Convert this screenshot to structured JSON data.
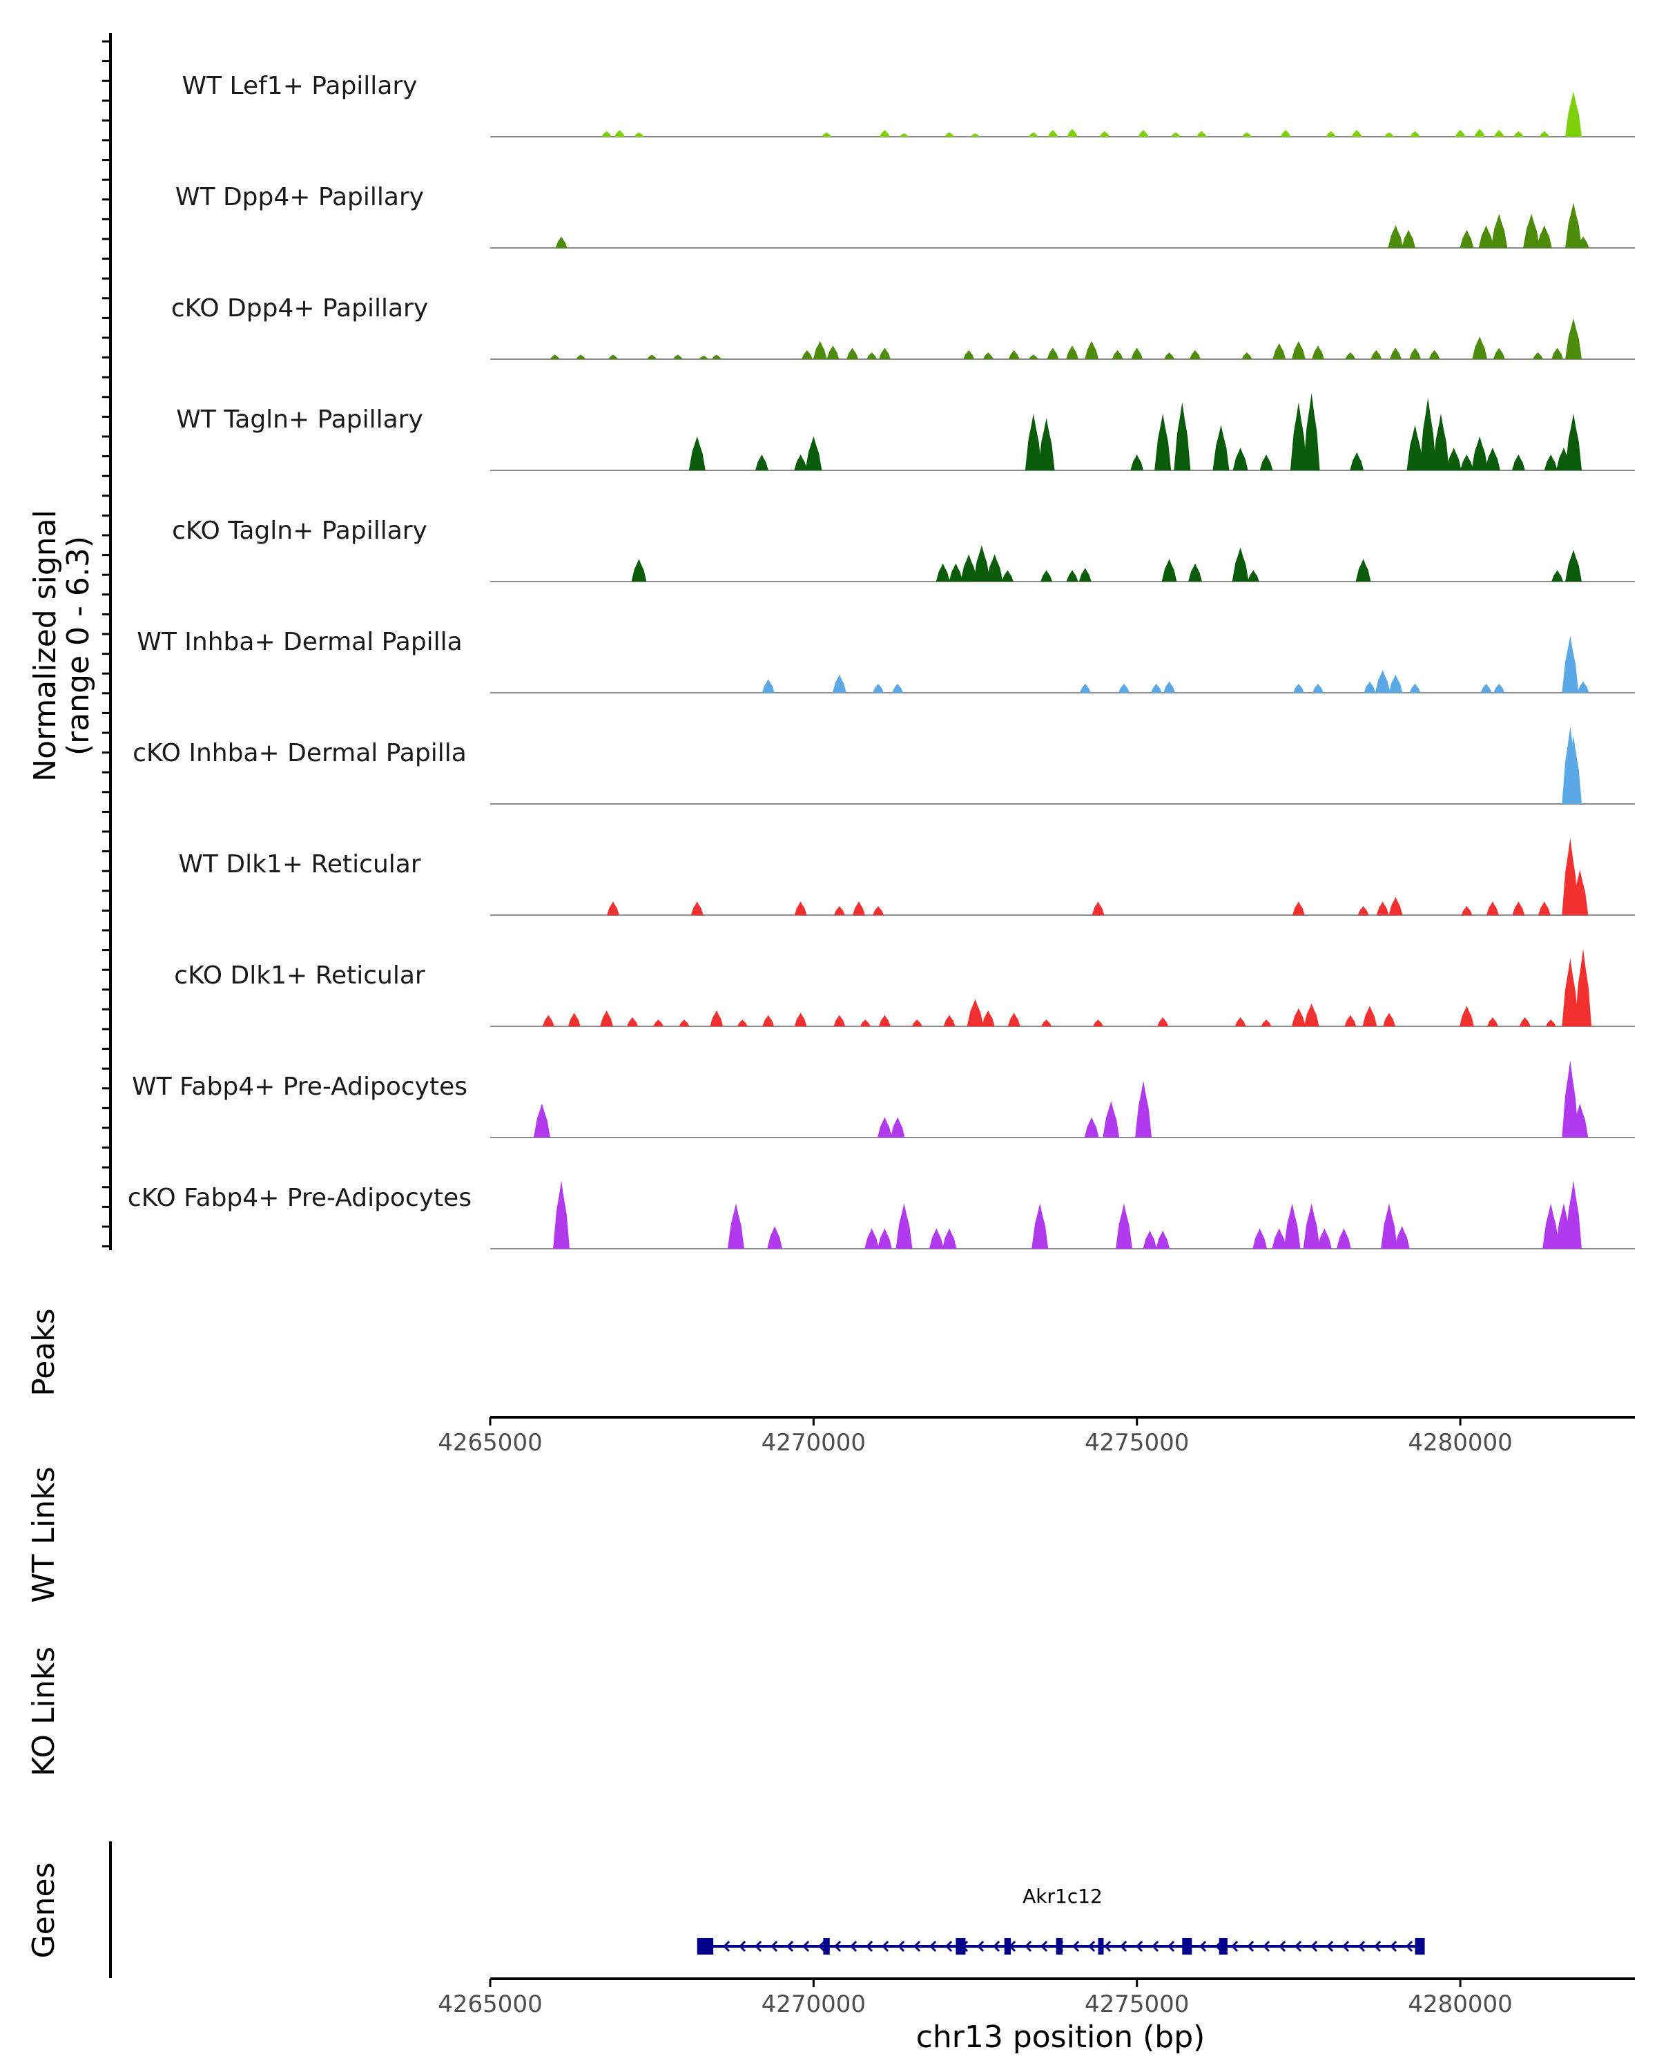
{
  "chart_data": {
    "type": "coverage",
    "region": {
      "chrom": "chr13",
      "start": 4265000,
      "end": 4282700
    },
    "coverage": {
      "ylabel_line1": "Normalized signal",
      "ylabel_line2": "(range 0 - 6.3)",
      "ylim": [
        0,
        6.3
      ],
      "tracks": [
        {
          "name": "WT Lef1+ Papillary",
          "color": "#7CD10A",
          "peaks": [
            [
              4266800,
              0.25
            ],
            [
              4267000,
              0.3
            ],
            [
              4267300,
              0.2
            ],
            [
              4270200,
              0.2
            ],
            [
              4271100,
              0.3
            ],
            [
              4271400,
              0.15
            ],
            [
              4272100,
              0.2
            ],
            [
              4272500,
              0.15
            ],
            [
              4273400,
              0.2
            ],
            [
              4273700,
              0.3
            ],
            [
              4274000,
              0.35
            ],
            [
              4274500,
              0.25
            ],
            [
              4275100,
              0.3
            ],
            [
              4275600,
              0.2
            ],
            [
              4276000,
              0.25
            ],
            [
              4276700,
              0.2
            ],
            [
              4277300,
              0.3
            ],
            [
              4278000,
              0.25
            ],
            [
              4278400,
              0.3
            ],
            [
              4278900,
              0.2
            ],
            [
              4279300,
              0.25
            ],
            [
              4280000,
              0.3
            ],
            [
              4280300,
              0.35
            ],
            [
              4280600,
              0.3
            ],
            [
              4280900,
              0.25
            ],
            [
              4281300,
              0.25
            ],
            [
              4281750,
              2.0
            ]
          ]
        },
        {
          "name": "WT Dpp4+ Papillary",
          "color": "#4C8C0A",
          "peaks": [
            [
              4266100,
              0.5
            ],
            [
              4279000,
              1.0
            ],
            [
              4279200,
              0.8
            ],
            [
              4280100,
              0.8
            ],
            [
              4280400,
              1.0
            ],
            [
              4280600,
              1.5
            ],
            [
              4281100,
              1.5
            ],
            [
              4281300,
              1.0
            ],
            [
              4281750,
              2.0
            ],
            [
              4281900,
              0.5
            ]
          ]
        },
        {
          "name": "cKO Dpp4+ Papillary",
          "color": "#4C8C0A",
          "peaks": [
            [
              4266000,
              0.2
            ],
            [
              4266400,
              0.2
            ],
            [
              4266900,
              0.2
            ],
            [
              4267500,
              0.2
            ],
            [
              4267900,
              0.2
            ],
            [
              4268300,
              0.15
            ],
            [
              4268500,
              0.2
            ],
            [
              4269900,
              0.4
            ],
            [
              4270100,
              0.8
            ],
            [
              4270300,
              0.6
            ],
            [
              4270600,
              0.5
            ],
            [
              4270900,
              0.3
            ],
            [
              4271100,
              0.5
            ],
            [
              4272400,
              0.4
            ],
            [
              4272700,
              0.3
            ],
            [
              4273100,
              0.4
            ],
            [
              4273400,
              0.2
            ],
            [
              4273700,
              0.5
            ],
            [
              4274000,
              0.6
            ],
            [
              4274300,
              0.8
            ],
            [
              4274700,
              0.4
            ],
            [
              4275000,
              0.5
            ],
            [
              4275500,
              0.3
            ],
            [
              4275900,
              0.4
            ],
            [
              4276700,
              0.3
            ],
            [
              4277200,
              0.7
            ],
            [
              4277500,
              0.8
            ],
            [
              4277800,
              0.6
            ],
            [
              4278300,
              0.3
            ],
            [
              4278700,
              0.4
            ],
            [
              4279000,
              0.5
            ],
            [
              4279300,
              0.5
            ],
            [
              4279600,
              0.4
            ],
            [
              4280300,
              1.0
            ],
            [
              4280600,
              0.5
            ],
            [
              4281200,
              0.3
            ],
            [
              4281500,
              0.5
            ],
            [
              4281750,
              1.8
            ]
          ]
        },
        {
          "name": "WT Tagln+ Papillary",
          "color": "#0A5C0A",
          "peaks": [
            [
              4268200,
              1.5
            ],
            [
              4269200,
              0.7
            ],
            [
              4269800,
              0.7
            ],
            [
              4270000,
              1.5
            ],
            [
              4273400,
              2.5
            ],
            [
              4273600,
              2.3
            ],
            [
              4275000,
              0.7
            ],
            [
              4275400,
              2.5
            ],
            [
              4275700,
              3.0
            ],
            [
              4276300,
              2.0
            ],
            [
              4276600,
              1.0
            ],
            [
              4277000,
              0.7
            ],
            [
              4277500,
              3.0
            ],
            [
              4277700,
              4.5
            ],
            [
              4278400,
              0.8
            ],
            [
              4279300,
              2.0
            ],
            [
              4279500,
              3.2
            ],
            [
              4279700,
              2.5
            ],
            [
              4279900,
              1.0
            ],
            [
              4280100,
              0.7
            ],
            [
              4280300,
              1.5
            ],
            [
              4280500,
              1.0
            ],
            [
              4280900,
              0.7
            ],
            [
              4281400,
              0.7
            ],
            [
              4281600,
              1.0
            ],
            [
              4281750,
              2.5
            ]
          ]
        },
        {
          "name": "cKO Tagln+ Papillary",
          "color": "#0A5C0A",
          "peaks": [
            [
              4267300,
              1.0
            ],
            [
              4272000,
              0.8
            ],
            [
              4272200,
              0.8
            ],
            [
              4272400,
              1.2
            ],
            [
              4272600,
              1.6
            ],
            [
              4272800,
              1.2
            ],
            [
              4273000,
              0.5
            ],
            [
              4273600,
              0.5
            ],
            [
              4274000,
              0.5
            ],
            [
              4274200,
              0.6
            ],
            [
              4275500,
              1.0
            ],
            [
              4275900,
              0.8
            ],
            [
              4276600,
              1.5
            ],
            [
              4276800,
              0.5
            ],
            [
              4278500,
              1.0
            ],
            [
              4281500,
              0.5
            ],
            [
              4281750,
              1.4
            ]
          ]
        },
        {
          "name": "WT Inhba+ Dermal Papilla",
          "color": "#5AA9E6",
          "peaks": [
            [
              4269300,
              0.6
            ],
            [
              4270400,
              0.8
            ],
            [
              4271000,
              0.4
            ],
            [
              4271300,
              0.4
            ],
            [
              4274200,
              0.4
            ],
            [
              4274800,
              0.4
            ],
            [
              4275300,
              0.4
            ],
            [
              4275500,
              0.5
            ],
            [
              4277500,
              0.4
            ],
            [
              4277800,
              0.4
            ],
            [
              4278600,
              0.5
            ],
            [
              4278800,
              1.0
            ],
            [
              4279000,
              0.8
            ],
            [
              4279300,
              0.4
            ],
            [
              4280400,
              0.4
            ],
            [
              4280600,
              0.4
            ],
            [
              4281700,
              2.5
            ],
            [
              4281900,
              0.5
            ]
          ]
        },
        {
          "name": "cKO Inhba+ Dermal Papilla",
          "color": "#5AA9E6",
          "peaks": [
            [
              4281700,
              5.0
            ],
            [
              4281750,
              3.0
            ]
          ]
        },
        {
          "name": "WT Dlk1+ Reticular",
          "color": "#F2302F",
          "peaks": [
            [
              4266900,
              0.6
            ],
            [
              4268200,
              0.6
            ],
            [
              4269800,
              0.6
            ],
            [
              4270400,
              0.4
            ],
            [
              4270700,
              0.6
            ],
            [
              4271000,
              0.4
            ],
            [
              4274400,
              0.6
            ],
            [
              4277500,
              0.6
            ],
            [
              4278500,
              0.4
            ],
            [
              4278800,
              0.6
            ],
            [
              4279000,
              0.8
            ],
            [
              4280100,
              0.4
            ],
            [
              4280500,
              0.6
            ],
            [
              4280900,
              0.6
            ],
            [
              4281300,
              0.6
            ],
            [
              4281700,
              3.5
            ],
            [
              4281850,
              2.0
            ]
          ]
        },
        {
          "name": "cKO Dlk1+ Reticular",
          "color": "#F2302F",
          "peaks": [
            [
              4265900,
              0.5
            ],
            [
              4266300,
              0.6
            ],
            [
              4266800,
              0.7
            ],
            [
              4267200,
              0.4
            ],
            [
              4267600,
              0.3
            ],
            [
              4268000,
              0.3
            ],
            [
              4268500,
              0.7
            ],
            [
              4268900,
              0.3
            ],
            [
              4269300,
              0.5
            ],
            [
              4269800,
              0.6
            ],
            [
              4270400,
              0.5
            ],
            [
              4270800,
              0.3
            ],
            [
              4271100,
              0.5
            ],
            [
              4271600,
              0.3
            ],
            [
              4272100,
              0.5
            ],
            [
              4272500,
              1.2
            ],
            [
              4272700,
              0.7
            ],
            [
              4273100,
              0.6
            ],
            [
              4273600,
              0.3
            ],
            [
              4274400,
              0.3
            ],
            [
              4275400,
              0.4
            ],
            [
              4276600,
              0.4
            ],
            [
              4277000,
              0.3
            ],
            [
              4277500,
              0.8
            ],
            [
              4277700,
              1.0
            ],
            [
              4278300,
              0.5
            ],
            [
              4278600,
              0.9
            ],
            [
              4278900,
              0.6
            ],
            [
              4280100,
              0.9
            ],
            [
              4280500,
              0.4
            ],
            [
              4281000,
              0.4
            ],
            [
              4281400,
              0.3
            ],
            [
              4281700,
              3.0
            ],
            [
              4281900,
              4.5
            ]
          ]
        },
        {
          "name": "WT Fabp4+ Pre-Adipocytes",
          "color": "#B23AEE",
          "peaks": [
            [
              4265800,
              1.5
            ],
            [
              4271100,
              0.9
            ],
            [
              4271300,
              0.9
            ],
            [
              4274300,
              0.9
            ],
            [
              4274600,
              1.6
            ],
            [
              4275100,
              2.5
            ],
            [
              4281700,
              3.5
            ],
            [
              4281850,
              1.5
            ]
          ]
        },
        {
          "name": "cKO Fabp4+ Pre-Adipocytes",
          "color": "#B23AEE",
          "peaks": [
            [
              4266100,
              3.0
            ],
            [
              4268800,
              2.0
            ],
            [
              4269400,
              1.0
            ],
            [
              4270900,
              0.9
            ],
            [
              4271100,
              0.9
            ],
            [
              4271400,
              2.0
            ],
            [
              4271900,
              0.9
            ],
            [
              4272100,
              0.9
            ],
            [
              4273500,
              2.0
            ],
            [
              4274800,
              2.0
            ],
            [
              4275200,
              0.8
            ],
            [
              4275400,
              0.8
            ],
            [
              4276900,
              0.9
            ],
            [
              4277200,
              0.9
            ],
            [
              4277400,
              2.0
            ],
            [
              4277700,
              2.0
            ],
            [
              4277900,
              0.9
            ],
            [
              4278200,
              0.9
            ],
            [
              4278900,
              2.0
            ],
            [
              4279100,
              1.0
            ],
            [
              4281400,
              2.0
            ],
            [
              4281600,
              2.0
            ],
            [
              4281750,
              3.0
            ]
          ]
        }
      ]
    },
    "peaks_track": {
      "label": "Peaks"
    },
    "links_tracks": [
      {
        "label": "WT Links"
      },
      {
        "label": "KO Links"
      }
    ],
    "genes_track": {
      "label": "Genes",
      "gene": {
        "name": "Akr1c12",
        "start": 4268300,
        "end": 4279400,
        "strand": "-",
        "color": "#00008B",
        "exons": [
          [
            4268200,
            4268450
          ],
          [
            4270150,
            4270250
          ],
          [
            4272200,
            4272350
          ],
          [
            4272950,
            4273050
          ],
          [
            4273750,
            4273850
          ],
          [
            4274400,
            4274480
          ],
          [
            4275700,
            4275850
          ],
          [
            4276270,
            4276400
          ],
          [
            4279300,
            4279450
          ]
        ]
      }
    },
    "x_axis": {
      "ticks": [
        4265000,
        4270000,
        4275000,
        4280000
      ],
      "tick_labels": [
        "4265000",
        "4270000",
        "4275000",
        "4280000"
      ],
      "label": "chr13 position (bp)"
    }
  }
}
